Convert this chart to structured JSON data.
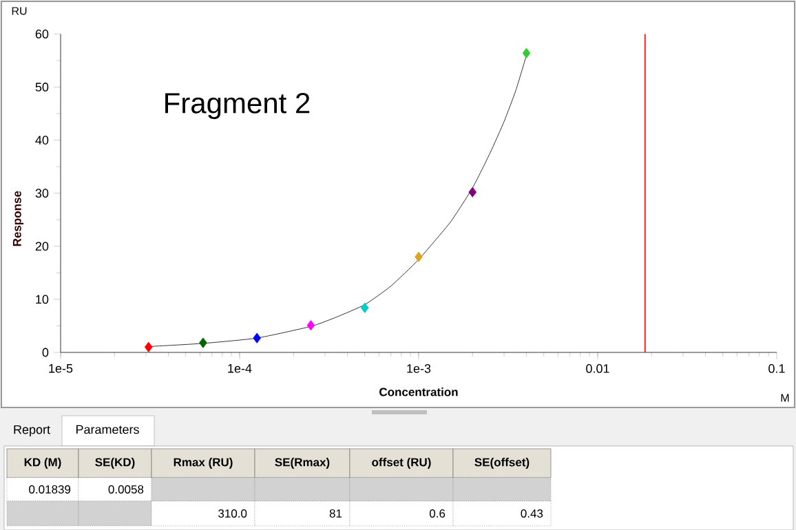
{
  "chart_data": {
    "type": "scatter",
    "title": "Fragment 2",
    "xlabel": "Concentration",
    "ylabel": "Response",
    "log": "x",
    "xlim": [
      1e-05,
      0.1
    ],
    "xticks": [
      {
        "value": 1e-05,
        "label": "1e-5"
      },
      {
        "value": 0.0001,
        "label": "1e-4"
      },
      {
        "value": 0.001,
        "label": "1e-3"
      },
      0.01,
      0.1
    ],
    "ylim": [
      0,
      60
    ],
    "yticks": [
      0,
      10,
      20,
      30,
      40,
      50,
      60
    ],
    "grid": false,
    "series": [
      {
        "type": "line",
        "color": "#000000",
        "line_style": "solid",
        "marker": "none",
        "x": [
          3.1e-05,
          6.25e-05,
          0.000125,
          0.00025,
          0.00035,
          0.0005,
          0.0007,
          0.001,
          0.0015,
          0.002,
          0.0025,
          0.003,
          0.0035,
          0.004
        ],
        "values": [
          1.1,
          1.7,
          2.7,
          4.9,
          6.7,
          9.0,
          12.5,
          17.5,
          24.5,
          31,
          37.5,
          43.5,
          49.5,
          56
        ]
      },
      {
        "type": "scatter",
        "marker": "diamond",
        "x": [
          3.1e-05,
          6.25e-05,
          0.000125,
          0.00025,
          0.0005,
          0.001,
          0.002,
          0.004
        ],
        "values": [
          1.0,
          1.8,
          2.7,
          5.1,
          8.4,
          18.0,
          30.2,
          56.4
        ],
        "colors": [
          "#ff0000",
          "#006400",
          "#0000ff",
          "#ff00ff",
          "#00cccc",
          "#daa520",
          "#800080",
          "#33cc33"
        ]
      }
    ],
    "ref_lines": [
      {
        "axis": "x",
        "value": 0.01839,
        "color": "#ff0000"
      }
    ],
    "annotations": [
      "RU",
      "M",
      "Report",
      "Parameters",
      "KD (M)",
      "SE(KD)",
      "Rmax (RU)",
      "SE(Rmax)",
      "offset (RU)",
      "SE(offset)",
      "0.01839",
      "0.0058",
      "310.0",
      "81",
      "0.6",
      "0.43"
    ]
  }
}
